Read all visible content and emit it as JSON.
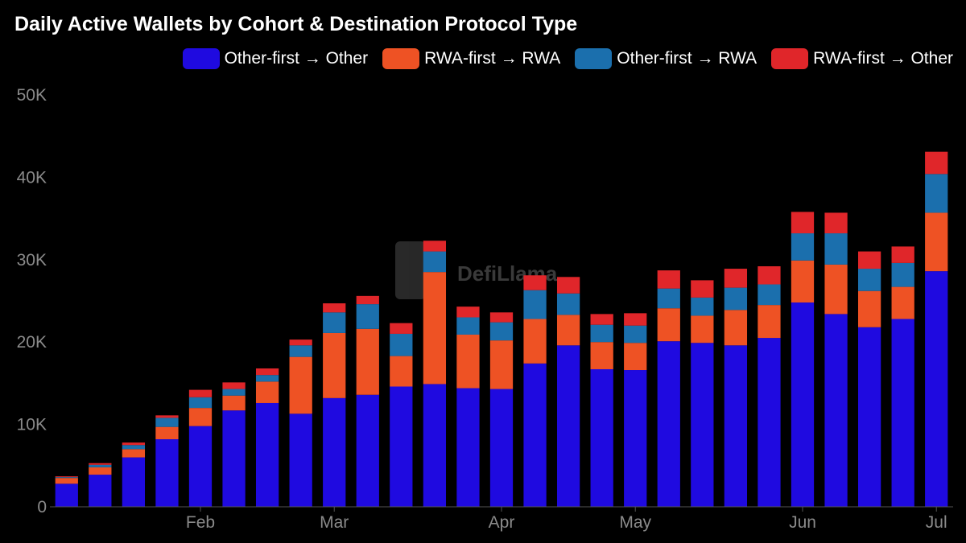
{
  "chart_data": {
    "type": "bar",
    "stacked": true,
    "title": "Daily Active Wallets by Cohort & Destination Protocol Type",
    "xlabel": "",
    "ylabel": "",
    "ylim": [
      0,
      50000
    ],
    "y_ticks": [
      {
        "value": 0,
        "label": "0"
      },
      {
        "value": 10000,
        "label": "10K"
      },
      {
        "value": 20000,
        "label": "20K"
      },
      {
        "value": 30000,
        "label": "30K"
      },
      {
        "value": 40000,
        "label": "40K"
      },
      {
        "value": 50000,
        "label": "50K"
      }
    ],
    "x_ticks": [
      {
        "after_bar": 4,
        "label": "Feb"
      },
      {
        "after_bar": 8,
        "label": "Mar"
      },
      {
        "after_bar": 13,
        "label": "Apr"
      },
      {
        "after_bar": 17,
        "label": "May"
      },
      {
        "after_bar": 22,
        "label": "Jun"
      },
      {
        "after_bar": 26,
        "label": "Jul"
      }
    ],
    "grid": false,
    "legend_position": "top-right",
    "series": [
      {
        "name": "Other-first → Other",
        "color": "#1f0ae0",
        "values": [
          2800,
          3900,
          6000,
          8200,
          9800,
          11700,
          12600,
          11300,
          13200,
          13600,
          14600,
          14900,
          14400,
          14300,
          17400,
          19600,
          16700,
          16600,
          20100,
          19900,
          19600,
          20500,
          24800,
          23400,
          21800,
          22800,
          28600
        ]
      },
      {
        "name": "RWA-first → RWA",
        "color": "#ee5224",
        "values": [
          700,
          900,
          1000,
          1500,
          2200,
          1800,
          2600,
          6900,
          7900,
          8000,
          3700,
          13600,
          6500,
          5900,
          5400,
          3700,
          3300,
          3300,
          4000,
          3300,
          4300,
          4000,
          5100,
          6000,
          4400,
          3900,
          7100
        ]
      },
      {
        "name": "Other-first → RWA",
        "color": "#1b6fad",
        "values": [
          100,
          300,
          500,
          1100,
          1300,
          800,
          800,
          1400,
          2500,
          3000,
          2700,
          2500,
          2100,
          2200,
          3500,
          2600,
          2100,
          2100,
          2400,
          2200,
          2700,
          2500,
          3300,
          3800,
          2700,
          2900,
          4700
        ]
      },
      {
        "name": "RWA-first → Other",
        "color": "#e0262a",
        "values": [
          100,
          200,
          300,
          300,
          900,
          800,
          800,
          700,
          1100,
          1000,
          1300,
          1300,
          1300,
          1200,
          1800,
          2000,
          1300,
          1500,
          2200,
          2100,
          2300,
          2200,
          2600,
          2500,
          2100,
          2000,
          2700
        ]
      }
    ]
  },
  "watermark": "DefiLlama"
}
